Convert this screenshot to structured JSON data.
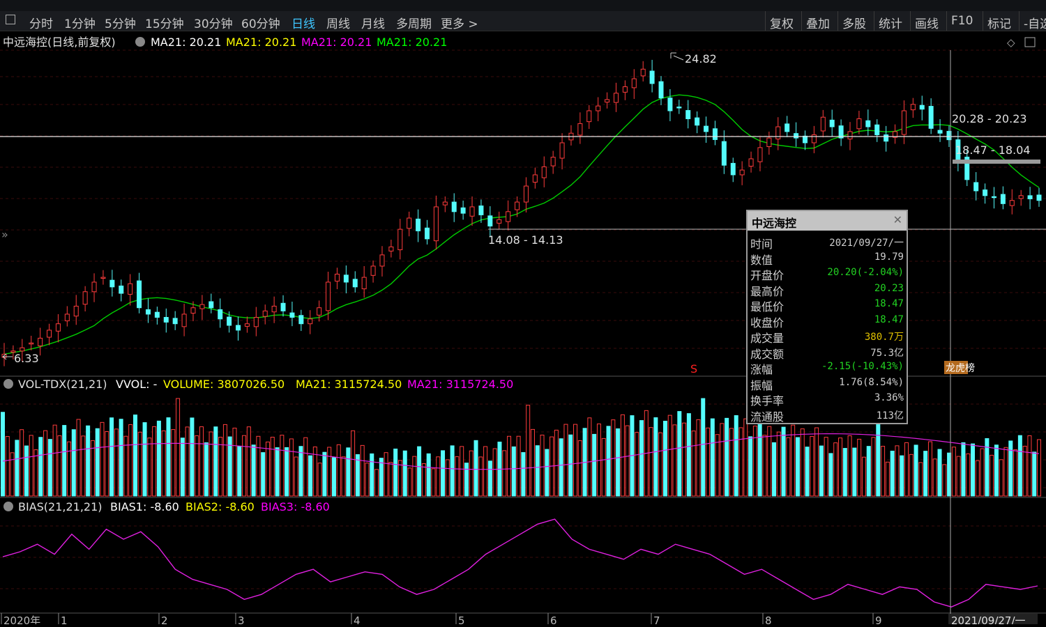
{
  "toolbar": {
    "periods": [
      "分时",
      "1分钟",
      "5分钟",
      "15分钟",
      "30分钟",
      "60分钟",
      "日线",
      "周线",
      "月线",
      "多周期",
      "更多 >"
    ],
    "active_period": "日线",
    "right_buttons": [
      "复权",
      "叠加",
      "多股",
      "统计",
      "画线",
      "F10",
      "标记",
      "-自选"
    ]
  },
  "main_panel": {
    "title": "中远海控(日线,前复权)",
    "ma_labels": [
      {
        "text": "MA21: 20.21",
        "color": "#ffffff"
      },
      {
        "text": "MA21: 20.21",
        "color": "#ffff00"
      },
      {
        "text": "MA21: 20.21",
        "color": "#ff00ff"
      },
      {
        "text": "MA21: 20.21",
        "color": "#00ff00"
      }
    ],
    "annotations": {
      "high_label": "24.82",
      "low_label": "6.33",
      "range1": "14.08 - 14.13",
      "range2": "20.28 - 20.23",
      "range3": "18.47 - 18.04",
      "marker_s": "S",
      "marker_board": "龙虎榜"
    }
  },
  "volume_panel": {
    "title": "VOL-TDX(21,21)",
    "labels": [
      {
        "text": "VVOL: -",
        "color": "#ffffff"
      },
      {
        "text": "VOLUME: 3807026.50",
        "color": "#ffff00"
      },
      {
        "text": "MA21: 3115724.50",
        "color": "#ffff00"
      },
      {
        "text": "MA21: 3115724.50",
        "color": "#ff00ff"
      }
    ]
  },
  "bias_panel": {
    "title": "BIAS(21,21,21)",
    "labels": [
      {
        "text": "BIAS1: -8.60",
        "color": "#ffffff"
      },
      {
        "text": "BIAS2: -8.60",
        "color": "#ffff00"
      },
      {
        "text": "BIAS3: -8.60",
        "color": "#ff00ff"
      }
    ]
  },
  "x_axis": {
    "labels": [
      "2020年",
      "1",
      "2",
      "3",
      "4",
      "5",
      "6",
      "7",
      "8",
      "9"
    ],
    "cursor_date": "2021/09/27/一"
  },
  "tooltip": {
    "title": "中远海控",
    "rows": [
      {
        "label": "时间",
        "value": "2021/09/27/一",
        "color": "#d0d0d0"
      },
      {
        "label": "数值",
        "value": "19.79",
        "color": "#d0d0d0"
      },
      {
        "label": "开盘价",
        "value": "20.20(-2.04%)",
        "color": "#22d322"
      },
      {
        "label": "最高价",
        "value": "20.23",
        "color": "#22d322"
      },
      {
        "label": "最低价",
        "value": "18.47",
        "color": "#22d322"
      },
      {
        "label": "收盘价",
        "value": "18.47",
        "color": "#22d322"
      },
      {
        "label": "成交量",
        "value": "380.7万",
        "color": "#e0c000"
      },
      {
        "label": "成交额",
        "value": "75.3亿",
        "color": "#d0d0d0"
      },
      {
        "label": "涨幅",
        "value": "-2.15(-10.43%)",
        "color": "#22d322"
      },
      {
        "label": "振幅",
        "value": "1.76(8.54%)",
        "color": "#d0d0d0"
      },
      {
        "label": "换手率",
        "value": "3.36%",
        "color": "#d0d0d0"
      },
      {
        "label": "流通股",
        "value": "113亿",
        "color": "#d0d0d0"
      }
    ]
  },
  "colors": {
    "up": "#ff3c3c",
    "down": "#54fcfc",
    "ma": "#00cc00",
    "bias": "#e020e0",
    "vol_ma": "#e020e0",
    "grid": "#3a0a0a"
  },
  "chart_data": [
    {
      "type": "candlestick",
      "title": "中远海控(日线,前复权)",
      "y_high": 24.82,
      "y_low": 6.33,
      "closes": [
        6.4,
        6.6,
        6.8,
        7.1,
        7.4,
        7.9,
        8.3,
        8.9,
        9.4,
        10.3,
        10.9,
        11.2,
        10.6,
        10.2,
        10.8,
        9.3,
        8.9,
        8.7,
        8.4,
        8.3,
        8.9,
        9.3,
        9.5,
        9.3,
        8.6,
        8.2,
        7.9,
        8.3,
        8.7,
        9.1,
        9.4,
        9.1,
        8.7,
        8.3,
        8.6,
        9.3,
        10.9,
        11.4,
        10.9,
        10.6,
        11.2,
        11.9,
        12.6,
        13.1,
        14.2,
        14.9,
        14.1,
        13.6,
        15.6,
        15.9,
        15.3,
        15.2,
        15.6,
        15.1,
        14.4,
        14.8,
        15.3,
        15.9,
        16.9,
        17.6,
        18.1,
        18.7,
        19.6,
        20.2,
        20.8,
        21.6,
        21.9,
        22.3,
        22.7,
        23.1,
        23.6,
        24.2,
        23.3,
        22.4,
        21.6,
        21.8,
        21.1,
        20.7,
        20.3,
        19.8,
        18.2,
        17.6,
        17.9,
        18.6,
        19.3,
        19.9,
        20.6,
        20.3,
        19.9,
        19.6,
        20.1,
        21.2,
        20.6,
        19.9,
        20.3,
        21.1,
        20.6,
        20.1,
        19.7,
        20.3,
        21.6,
        22.0,
        21.7,
        20.5,
        20.2,
        19.79,
        18.47,
        17.3,
        16.6,
        16.3,
        16.2,
        15.8,
        16.0,
        16.3,
        16.1,
        16.0
      ]
    },
    {
      "type": "bar",
      "title": "VOL-TDX(21,21)",
      "series": [
        {
          "name": "VOLUME",
          "last": 3807026.5
        },
        {
          "name": "MA21",
          "last": 3115724.5
        }
      ]
    },
    {
      "type": "line",
      "title": "BIAS(21,21,21)",
      "series": [
        {
          "name": "BIAS1",
          "values": [
            3,
            5,
            8,
            4,
            12,
            6,
            14,
            10,
            13,
            7,
            -2,
            -6,
            -8,
            -10,
            -14,
            -12,
            -8,
            -4,
            -2,
            -7,
            -5,
            -3,
            -4,
            -9,
            -12,
            -10,
            -6,
            -2,
            4,
            8,
            12,
            16,
            18,
            10,
            6,
            4,
            2,
            6,
            4,
            8,
            6,
            4,
            0,
            -4,
            -2,
            -6,
            -10,
            -14,
            -12,
            -8,
            -10,
            -12,
            -9,
            -10.0,
            -15,
            -17,
            -14,
            -8,
            -9,
            -10,
            -8.6
          ]
        }
      ]
    }
  ]
}
